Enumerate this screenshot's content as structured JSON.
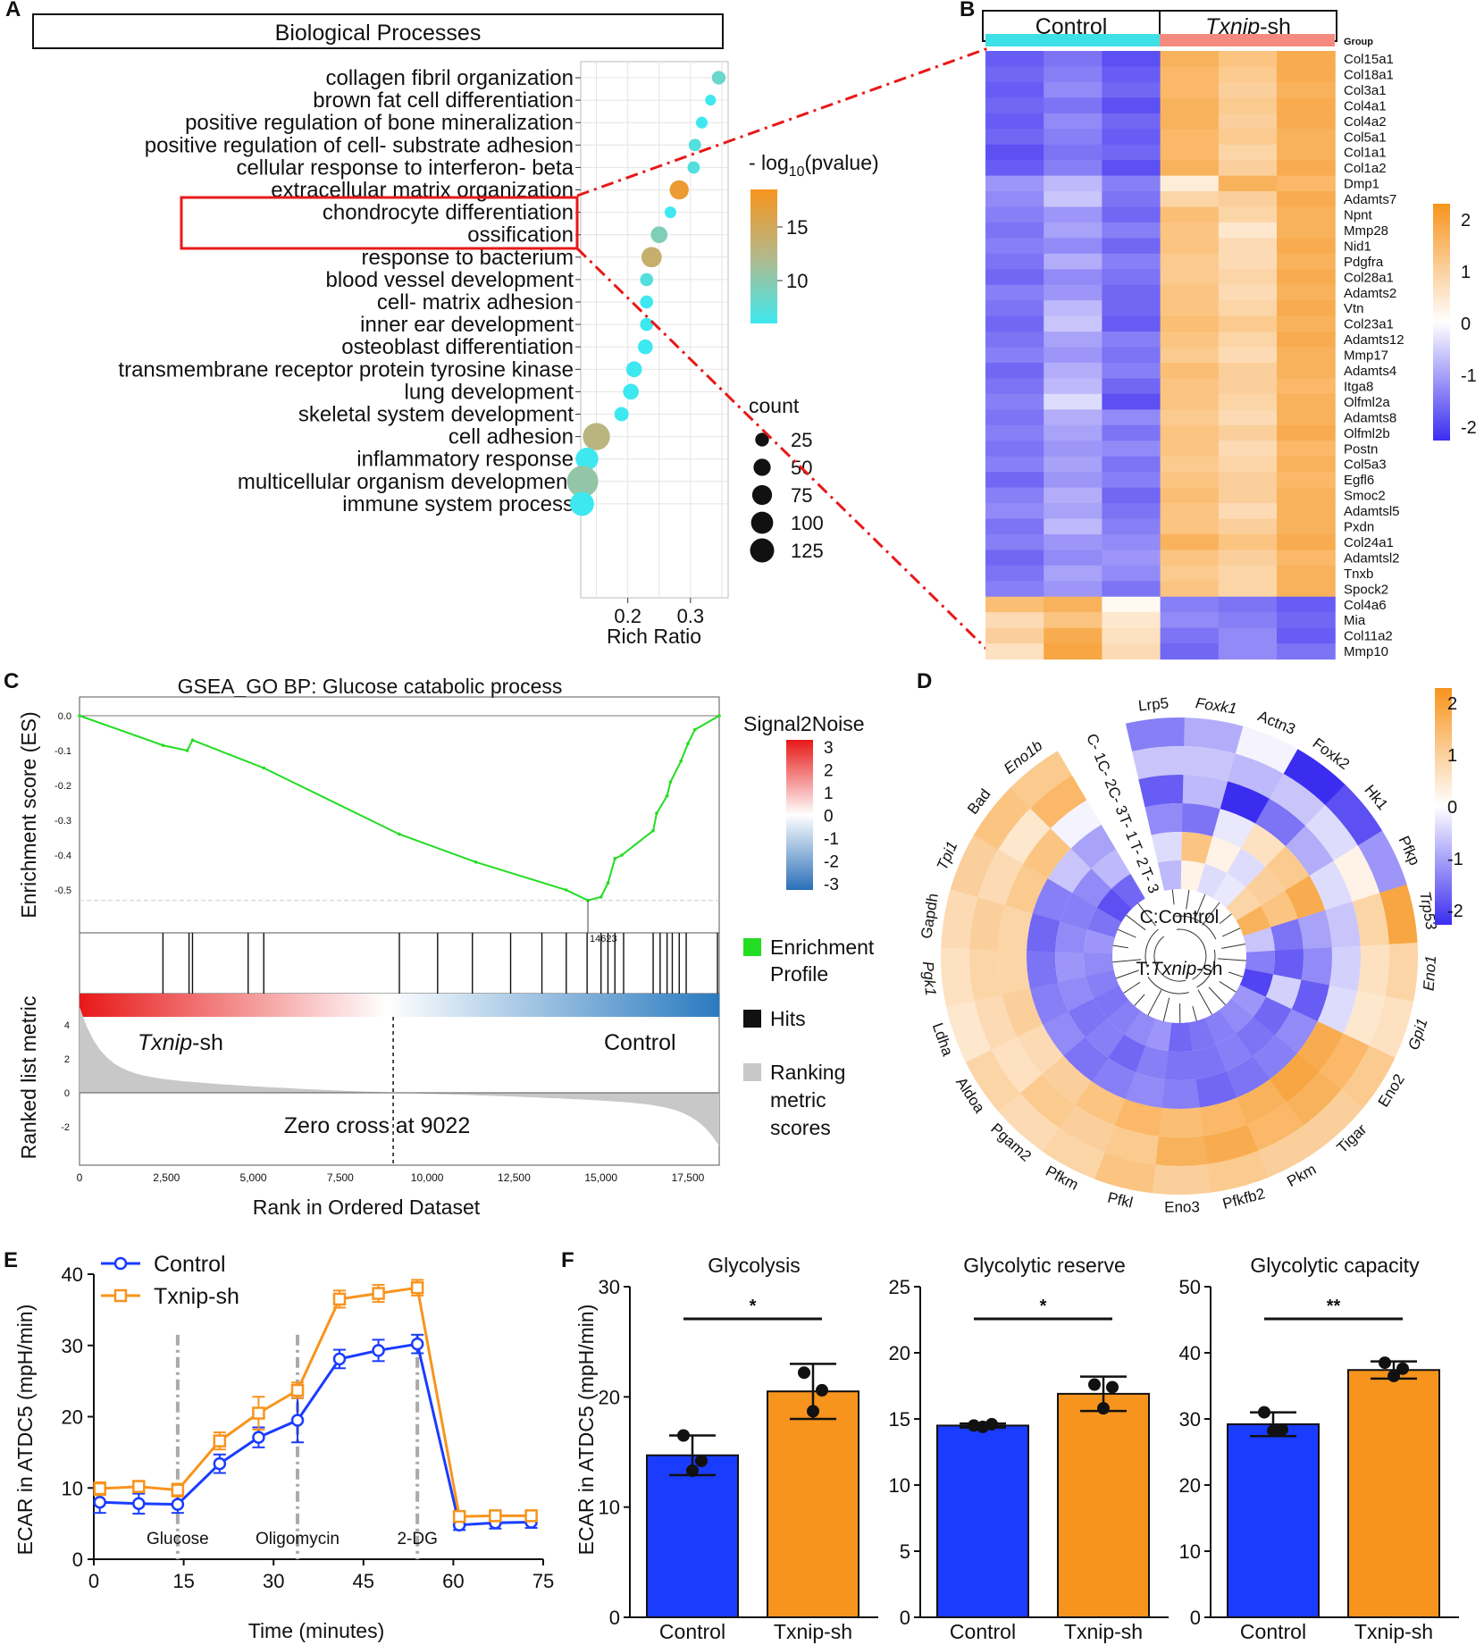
{
  "panel_letters": {
    "a": "A",
    "b": "B",
    "c": "C",
    "d": "D",
    "e": "E",
    "f": "F"
  },
  "colors": {
    "orange": "#f7941d",
    "blue": "#1a3cff",
    "cyan": "#3ee8f0",
    "hm_low": "#3b2df0",
    "hm_mid": "#ffffff",
    "hm_high": "#f7941d",
    "green": "#22dd22",
    "red": "#e81818"
  },
  "chart_data": [
    {
      "id": "A",
      "type": "scatter",
      "title": "Biological Processes",
      "xlabel": "Rich Ratio",
      "xticks": [
        0.2,
        0.3
      ],
      "xlim": [
        0.125,
        0.36
      ],
      "highlighted": [
        "extracellular matrix organization",
        "chondrocyte differentiation"
      ],
      "terms": [
        {
          "label": "collagen fibril organization",
          "rich": 0.345,
          "logp": 9,
          "count": 14
        },
        {
          "label": "brown fat cell differentiation",
          "rich": 0.332,
          "logp": 7,
          "count": 6
        },
        {
          "label": "positive regulation of bone mineralization",
          "rich": 0.318,
          "logp": 7,
          "count": 8
        },
        {
          "label": "positive regulation of cell- substrate adhesion",
          "rich": 0.307,
          "logp": 8,
          "count": 10
        },
        {
          "label": "cellular response to interferon- beta",
          "rich": 0.305,
          "logp": 8,
          "count": 10
        },
        {
          "label": "extracellular matrix organization",
          "rich": 0.282,
          "logp": 17,
          "count": 38
        },
        {
          "label": "chondrocyte differentiation",
          "rich": 0.268,
          "logp": 7,
          "count": 8
        },
        {
          "label": "ossification",
          "rich": 0.25,
          "logp": 10,
          "count": 26
        },
        {
          "label": "response to bacterium",
          "rich": 0.238,
          "logp": 14,
          "count": 45
        },
        {
          "label": "blood vessel development",
          "rich": 0.23,
          "logp": 8,
          "count": 12
        },
        {
          "label": "cell- matrix adhesion",
          "rich": 0.23,
          "logp": 7,
          "count": 12
        },
        {
          "label": "inner ear development",
          "rich": 0.23,
          "logp": 7,
          "count": 12
        },
        {
          "label": "osteoblast differentiation",
          "rich": 0.228,
          "logp": 7,
          "count": 18
        },
        {
          "label": "transmembrane receptor protein tyrosine kinase",
          "rich": 0.21,
          "logp": 7,
          "count": 22
        },
        {
          "label": "lung development",
          "rich": 0.205,
          "logp": 7,
          "count": 22
        },
        {
          "label": "skeletal system development",
          "rich": 0.19,
          "logp": 7,
          "count": 16
        },
        {
          "label": "cell adhesion",
          "rich": 0.15,
          "logp": 13,
          "count": 95
        },
        {
          "label": "inflammatory response",
          "rich": 0.135,
          "logp": 7,
          "count": 60
        },
        {
          "label": "multicellular organism development",
          "rich": 0.128,
          "logp": 11,
          "count": 135
        },
        {
          "label": "immune system process",
          "rich": 0.127,
          "logp": 7,
          "count": 70
        }
      ],
      "color_legend": {
        "title_pre": "- log",
        "title_sub": "10",
        "title_post": "(pvalue)",
        "ticks": [
          "15",
          "10"
        ],
        "range": [
          7,
          18
        ]
      },
      "size_legend": {
        "title": "count",
        "values": [
          25,
          50,
          75,
          100,
          125
        ]
      }
    },
    {
      "id": "B",
      "type": "heatmap",
      "groups": [
        {
          "label": "Control"
        },
        {
          "label_italic": "Txnip",
          "label_rest": "-sh"
        }
      ],
      "group_label": "Group",
      "genes": [
        "Col15a1",
        "Col18a1",
        "Col3a1",
        "Col4a1",
        "Col4a2",
        "Col5a1",
        "Col1a1",
        "Col1a2",
        "Dmp1",
        "Adamts7",
        "Npnt",
        "Mmp28",
        "Nid1",
        "Pdgfra",
        "Col28a1",
        "Adamts2",
        "Vtn",
        "Col23a1",
        "Adamts12",
        "Mmp17",
        "Adamts4",
        "Itga8",
        "Olfml2a",
        "Adamts8",
        "Olfml2b",
        "Postn",
        "Col5a3",
        "Egfl6",
        "Smoc2",
        "Adamtsl5",
        "Pxdn",
        "Col24a1",
        "Adamtsl2",
        "Tnxb",
        "Spock2",
        "Col4a6",
        "Mia",
        "Col11a2",
        "Mmp10"
      ],
      "values": [
        [
          -1.4,
          -1.2,
          -1.5,
          1.3,
          1.0,
          1.4
        ],
        [
          -1.3,
          -1.1,
          -1.4,
          1.2,
          0.9,
          1.4
        ],
        [
          -1.4,
          -1.0,
          -1.3,
          1.2,
          0.8,
          1.3
        ],
        [
          -1.3,
          -1.2,
          -1.5,
          1.3,
          0.9,
          1.4
        ],
        [
          -1.4,
          -1.0,
          -1.3,
          1.3,
          0.8,
          1.4
        ],
        [
          -1.3,
          -1.1,
          -1.4,
          1.2,
          0.9,
          1.3
        ],
        [
          -1.5,
          -1.2,
          -1.3,
          1.2,
          0.7,
          1.3
        ],
        [
          -1.4,
          -1.1,
          -1.5,
          1.3,
          0.8,
          1.4
        ],
        [
          -0.9,
          -0.6,
          -1.1,
          0.3,
          1.3,
          1.2
        ],
        [
          -1.0,
          -0.5,
          -1.2,
          0.7,
          0.8,
          1.4
        ],
        [
          -1.1,
          -0.9,
          -1.3,
          1.1,
          0.7,
          1.3
        ],
        [
          -1.2,
          -0.8,
          -1.1,
          1.0,
          0.4,
          1.3
        ],
        [
          -1.1,
          -1.0,
          -1.3,
          1.0,
          0.6,
          1.4
        ],
        [
          -1.2,
          -0.7,
          -1.1,
          0.9,
          0.6,
          1.3
        ],
        [
          -1.3,
          -1.0,
          -1.2,
          0.9,
          0.7,
          1.4
        ],
        [
          -1.1,
          -0.9,
          -1.3,
          1.0,
          0.6,
          1.3
        ],
        [
          -1.2,
          -0.6,
          -1.3,
          1.0,
          0.7,
          1.4
        ],
        [
          -1.3,
          -0.5,
          -1.4,
          1.1,
          0.9,
          1.3
        ],
        [
          -1.2,
          -0.8,
          -1.1,
          1.0,
          0.7,
          1.4
        ],
        [
          -1.1,
          -0.9,
          -1.2,
          0.9,
          0.6,
          1.3
        ],
        [
          -1.3,
          -0.7,
          -1.1,
          1.1,
          0.8,
          1.3
        ],
        [
          -1.2,
          -0.6,
          -1.3,
          1.0,
          0.8,
          1.2
        ],
        [
          -1.1,
          -0.3,
          -1.5,
          1.0,
          0.7,
          1.3
        ],
        [
          -1.2,
          -0.7,
          -1.0,
          0.9,
          0.6,
          1.3
        ],
        [
          -1.1,
          -0.8,
          -1.2,
          1.0,
          0.8,
          1.4
        ],
        [
          -1.2,
          -0.9,
          -1.0,
          1.0,
          0.6,
          1.2
        ],
        [
          -1.1,
          -0.8,
          -1.2,
          0.9,
          0.7,
          1.3
        ],
        [
          -1.3,
          -0.9,
          -1.1,
          1.0,
          0.8,
          1.2
        ],
        [
          -1.1,
          -0.7,
          -1.3,
          1.1,
          0.8,
          1.3
        ],
        [
          -1.0,
          -0.8,
          -1.2,
          1.0,
          0.6,
          1.3
        ],
        [
          -1.2,
          -0.6,
          -1.1,
          1.0,
          0.8,
          1.3
        ],
        [
          -1.1,
          -0.9,
          -1.0,
          1.3,
          1.0,
          1.4
        ],
        [
          -1.3,
          -1.0,
          -0.9,
          1.0,
          0.8,
          1.2
        ],
        [
          -1.2,
          -0.8,
          -1.0,
          0.9,
          0.7,
          1.3
        ],
        [
          -1.1,
          -0.9,
          -1.2,
          1.0,
          0.7,
          1.3
        ],
        [
          1.1,
          1.3,
          0.1,
          -1.1,
          -1.2,
          -1.4
        ],
        [
          0.6,
          1.0,
          0.4,
          -1.0,
          -1.1,
          -1.3
        ],
        [
          0.8,
          1.4,
          0.5,
          -1.2,
          -1.0,
          -1.4
        ],
        [
          0.5,
          1.5,
          0.6,
          -1.3,
          -1.0,
          -1.2
        ]
      ],
      "colorbar_ticks": [
        "2",
        "1",
        "0",
        "-1",
        "-2"
      ]
    },
    {
      "id": "C",
      "type": "line",
      "title": "GSEA_GO BP: Glucose catabolic process",
      "ylabel_top": "Enrichment score (ES)",
      "ylabel_bottom": "Ranked list metric",
      "xlabel": "Rank in Ordered Dataset",
      "yticks_es": [
        "0.0",
        "-0.1",
        "-0.2",
        "-0.3",
        "-0.4",
        "-0.5"
      ],
      "yticks_metric": [
        "4",
        "2",
        "0",
        "-2"
      ],
      "xticks": [
        "0",
        "2,500",
        "5,000",
        "7,500",
        "10,000",
        "12,500",
        "15,000",
        "17,500"
      ],
      "es_curve": {
        "x": [
          0,
          2400,
          3100,
          3250,
          5300,
          9200,
          11400,
          14000,
          14623,
          15000,
          15200,
          15400,
          15600,
          16500,
          16600,
          16900,
          17000,
          17300,
          17500,
          17700,
          18400
        ],
        "y": [
          0,
          -0.085,
          -0.1,
          -0.07,
          -0.15,
          -0.34,
          -0.42,
          -0.5,
          -0.53,
          -0.52,
          -0.48,
          -0.41,
          -0.4,
          -0.33,
          -0.28,
          -0.23,
          -0.19,
          -0.13,
          -0.08,
          -0.04,
          0
        ]
      },
      "hits": [
        2400,
        3150,
        3250,
        4850,
        5300,
        9200,
        10300,
        11300,
        12400,
        13300,
        14000,
        14600,
        15000,
        15200,
        15400,
        15650,
        16500,
        16700,
        16900,
        17050,
        17250,
        17450,
        18350
      ],
      "peak_rank": 14623,
      "peak_label": "14623",
      "zero_cross": 9022,
      "zero_cross_label": "Zero cross at 9022",
      "left_group_italic": "Txnip",
      "left_group_rest": "-sh",
      "right_group": "Control",
      "legend": {
        "signal_title": "Signal2Noise",
        "signal_ticks": [
          "3",
          "2",
          "1",
          "0",
          "-1",
          "-2",
          "-3"
        ],
        "enrichment": [
          "Enrichment",
          "Profile"
        ],
        "hits": "Hits",
        "ranking": [
          "Ranking",
          "metric",
          "scores"
        ]
      }
    },
    {
      "id": "D",
      "type": "heatmap",
      "genes": [
        "Lrp5",
        "Foxk1",
        "Actn3",
        "Foxk2",
        "Hk1",
        "Pfkp",
        "Trp53",
        "Eno1",
        "Gpi1",
        "Eno2",
        "Tigar",
        "Pkm",
        "Pfkfb2",
        "Eno3",
        "Pfkl",
        "Pfkm",
        "Pgam2",
        "Aldoa",
        "Ldha",
        "Pgk1",
        "Gapdh",
        "Tpi1",
        "Bad",
        "Eno1b"
      ],
      "rings": [
        "C- 1",
        "C- 2",
        "C- 3",
        "T- 1",
        "T- 2",
        "T- 3"
      ],
      "values": [
        [
          -1.1,
          -0.7,
          -0.1,
          -1.8,
          -1.5,
          -0.9,
          1.5,
          0.7,
          0.5,
          0.9,
          0.8,
          0.8,
          0.9,
          0.8,
          1.0,
          0.7,
          0.6,
          0.7,
          0.4,
          0.5,
          0.6,
          0.8,
          1.0,
          0.9
        ],
        [
          -0.5,
          -0.5,
          -0.6,
          -0.5,
          -0.3,
          0.2,
          0.7,
          0.5,
          0.4,
          1.2,
          1.3,
          1.2,
          1.4,
          1.3,
          0.9,
          0.8,
          0.9,
          0.5,
          0.6,
          0.7,
          0.8,
          0.6,
          0.4,
          1.2
        ],
        [
          -1.4,
          -0.6,
          -2.0,
          -1.2,
          -0.7,
          -0.3,
          -0.5,
          -0.4,
          -0.3,
          1.4,
          1.5,
          1.3,
          1.2,
          1.1,
          1.2,
          1.0,
          0.8,
          0.6,
          0.8,
          0.7,
          0.7,
          0.9,
          1.0,
          -0.1
        ],
        [
          -1.0,
          -1.2,
          -0.2,
          0.5,
          0.9,
          1.4,
          -0.8,
          -1.0,
          -1.4,
          -1.0,
          -1.1,
          -1.2,
          -1.3,
          -1.1,
          -1.0,
          -1.1,
          -1.2,
          -1.0,
          -1.1,
          -1.2,
          -1.3,
          -1.1,
          -0.5,
          -0.8
        ],
        [
          -0.3,
          1.0,
          0.2,
          -0.3,
          0.8,
          1.0,
          -1.2,
          -1.4,
          -0.4,
          -1.3,
          -1.2,
          -1.1,
          -1.2,
          -1.2,
          -1.1,
          -1.3,
          -1.1,
          -1.2,
          -1.0,
          -0.9,
          -1.0,
          -1.1,
          -1.0,
          -0.6
        ],
        [
          -0.6,
          0.2,
          -0.3,
          -0.2,
          0.7,
          1.3,
          -0.5,
          -1.1,
          -1.6,
          -0.9,
          -1.0,
          -1.1,
          -1.2,
          -1.3,
          -0.9,
          -1.0,
          -1.1,
          -1.2,
          -1.1,
          -1.0,
          -0.9,
          -1.2,
          -1.5,
          -1.3
        ]
      ],
      "center_labels": [
        "C:Control"
      ],
      "center_label2_pre": "T:",
      "center_label2_italic": "Txnip",
      "center_label2_post": "-sh",
      "colorbar_ticks": [
        "2",
        "1",
        "0",
        "-1",
        "-2"
      ]
    },
    {
      "id": "E",
      "type": "line",
      "ylabel": "ECAR in ATDC5 (mpH/min)",
      "xlabel": "Time (minutes)",
      "xlim": [
        0,
        75
      ],
      "ylim": [
        0,
        40
      ],
      "xticks": [
        0,
        15,
        30,
        45,
        60,
        75
      ],
      "yticks": [
        0,
        10,
        20,
        30,
        40
      ],
      "injections": [
        {
          "x": 14,
          "label": "Glucose"
        },
        {
          "x": 34,
          "label": "Oligomycin"
        },
        {
          "x": 54,
          "label": "2-DG"
        }
      ],
      "series": [
        {
          "name": "Control",
          "color": "#1a3cff",
          "marker": "circle",
          "x": [
            1,
            7.5,
            14,
            21,
            27.5,
            34,
            41,
            47.5,
            54,
            61,
            67,
            73
          ],
          "y": [
            8.0,
            7.8,
            7.7,
            13.4,
            17.1,
            19.5,
            28.1,
            29.3,
            30.2,
            4.8,
            5.1,
            5.2
          ],
          "err": [
            1.5,
            1.4,
            1.2,
            1.3,
            1.4,
            3.1,
            1.3,
            1.5,
            1.3,
            0.7,
            0.8,
            0.8
          ]
        },
        {
          "name": "Txnip-sh",
          "color": "#f7941d",
          "marker": "square",
          "x": [
            1,
            7.5,
            14,
            21,
            27.5,
            34,
            41,
            47.5,
            54,
            61,
            67,
            73
          ],
          "y": [
            9.9,
            10.2,
            9.7,
            16.6,
            20.5,
            23.7,
            36.5,
            37.3,
            38.1,
            6.0,
            6.1,
            6.1
          ],
          "err": [
            0.9,
            0.8,
            0.9,
            1.2,
            2.3,
            1.1,
            1.2,
            1.2,
            1.1,
            0.5,
            0.5,
            0.5
          ]
        }
      ]
    },
    {
      "id": "F",
      "type": "bar",
      "ylabel": "ECAR in ATDC5 (mpH/min)",
      "categories": [
        "Control",
        "Txnip-sh"
      ],
      "subplots": [
        {
          "title": "Glycolysis",
          "ylim": [
            0,
            30
          ],
          "yticks": [
            0,
            10,
            20,
            30
          ],
          "values": [
            14.7,
            20.5
          ],
          "errors": [
            1.8,
            2.5
          ],
          "points": [
            [
              16.5,
              14.2,
              13.3
            ],
            [
              22.2,
              20.6,
              18.7
            ]
          ],
          "sig": "*"
        },
        {
          "title": "Glycolytic reserve",
          "ylim": [
            0,
            25
          ],
          "yticks": [
            0,
            5,
            10,
            15,
            20,
            25
          ],
          "values": [
            14.5,
            16.9
          ],
          "errors": [
            0.15,
            1.3
          ],
          "points": [
            [
              14.5,
              14.6,
              14.4
            ],
            [
              17.6,
              17.4,
              15.8
            ]
          ],
          "sig": "*"
        },
        {
          "title": "Glycolytic capacity",
          "ylim": [
            0,
            50
          ],
          "yticks": [
            0,
            10,
            20,
            30,
            40,
            50
          ],
          "values": [
            29.2,
            37.4
          ],
          "errors": [
            1.8,
            1.3
          ],
          "points": [
            [
              31.0,
              28.4,
              28.2
            ],
            [
              38.5,
              37.6,
              36.5
            ]
          ],
          "sig": "**"
        }
      ]
    }
  ]
}
